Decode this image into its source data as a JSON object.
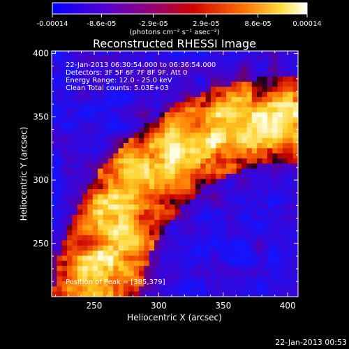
{
  "colorbar": {
    "tick_labels": [
      "-0.00014",
      "-8.6e-05",
      "-2.9e-05",
      "2.9e-05",
      "8.6e-05",
      "0.00014"
    ],
    "ticks": [
      -0.00014,
      -8.6e-05,
      -2.9e-05,
      2.9e-05,
      8.6e-05,
      0.00014
    ],
    "range": [
      -0.00014,
      0.00014
    ],
    "unit_label": "(photons cm⁻² s⁻¹ asec⁻²)",
    "colors": [
      "#0000ff",
      "#7a00c0",
      "#d40000",
      "#ff8000",
      "#ffff80",
      "#ffffff"
    ]
  },
  "chart_data": {
    "type": "heatmap",
    "title": "Reconstructed RHESSI Image",
    "xlabel": "Heliocentric X (arcsec)",
    "ylabel": "Heliocentric Y (arcsec)",
    "xlim": [
      217,
      408
    ],
    "ylim": [
      208,
      402
    ],
    "x_ticks": [
      250,
      300,
      350,
      400
    ],
    "y_ticks": [
      250,
      300,
      350,
      400
    ],
    "x_tick_labels": [
      "250",
      "300",
      "350",
      "400"
    ],
    "y_tick_labels": [
      "250",
      "300",
      "350",
      "400"
    ],
    "annotations": [
      "22-Jan-2013 06:30:54.000 to 06:36:54.000",
      "Detectors: 3F 5F 6F 7F 8F 9F, Att 0",
      "Energy Range: 12.0 - 25.0 keV",
      "Clean     Total counts: 5.03E+03"
    ],
    "peak_label": "Position of Peak = [385,379]",
    "peak": [
      385,
      379
    ]
  },
  "footer": {
    "timestamp": "22-Jan-2013 00:53"
  }
}
